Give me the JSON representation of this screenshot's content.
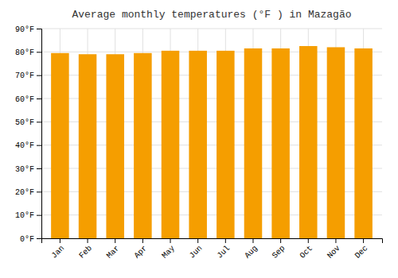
{
  "chart_data": {
    "type": "bar",
    "title": "Average monthly temperatures (°F ) in Mazagão",
    "categories": [
      "Jan",
      "Feb",
      "Mar",
      "Apr",
      "May",
      "Jun",
      "Jul",
      "Aug",
      "Sep",
      "Oct",
      "Nov",
      "Dec"
    ],
    "values": [
      79.5,
      79.0,
      79.0,
      79.5,
      80.5,
      80.5,
      80.5,
      81.5,
      81.5,
      82.5,
      82.0,
      81.5
    ],
    "color": "#F59E00",
    "ylim": [
      0,
      90
    ],
    "yticks": [
      {
        "value": 0,
        "label": "0°F"
      },
      {
        "value": 10,
        "label": "10°F"
      },
      {
        "value": 20,
        "label": "20°F"
      },
      {
        "value": 30,
        "label": "30°F"
      },
      {
        "value": 40,
        "label": "40°F"
      },
      {
        "value": 50,
        "label": "50°F"
      },
      {
        "value": 60,
        "label": "60°F"
      },
      {
        "value": 70,
        "label": "70°F"
      },
      {
        "value": 80,
        "label": "80°F"
      },
      {
        "value": 90,
        "label": "90°F"
      }
    ],
    "grid": true
  }
}
